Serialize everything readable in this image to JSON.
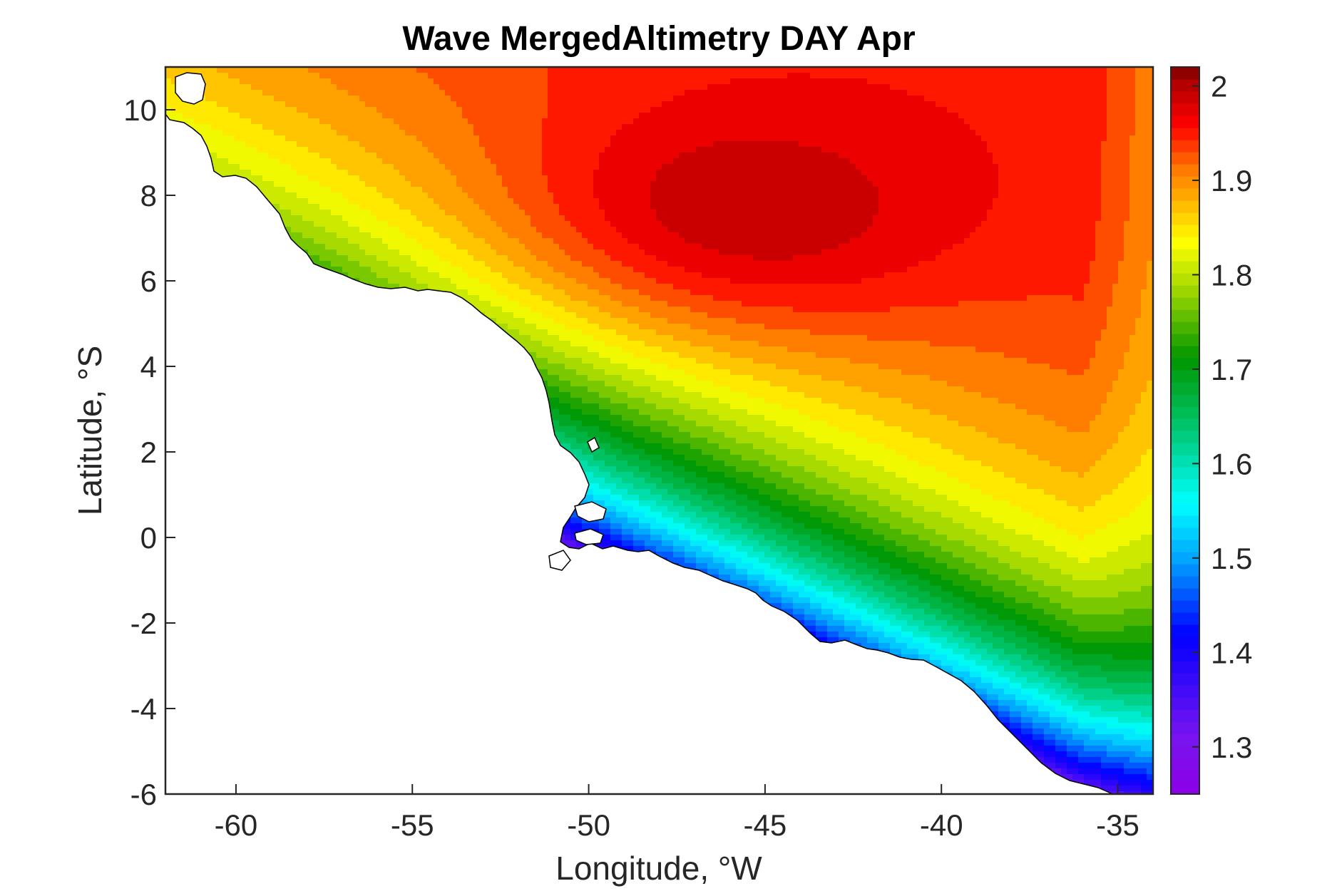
{
  "chart_data": {
    "type": "heatmap",
    "subtype": "filled-contour-map",
    "title": "Wave MergedAltimetry DAY Apr",
    "xlabel": "Longitude, °W",
    "ylabel": "Latitude, °S",
    "xlim": [
      -62,
      -34
    ],
    "ylim": [
      -6,
      11
    ],
    "x_ticks": [
      -60,
      -55,
      -50,
      -45,
      -40,
      -35
    ],
    "y_ticks": [
      -6,
      -4,
      -2,
      0,
      2,
      4,
      6,
      8,
      10
    ],
    "colorbar": {
      "range": [
        1.25,
        2.02
      ],
      "ticks": [
        "1.3",
        "1.4",
        "1.5",
        "1.6",
        "1.7",
        "1.8",
        "1.9",
        "2"
      ],
      "colormap": "jet-like (purple-blue-cyan-green-yellow-red-darkred)"
    },
    "field": {
      "maximum": {
        "lon": -46.5,
        "lat": 7.2,
        "value": 2.0
      },
      "minimum_near": {
        "lon": -49.0,
        "lat": -0.5,
        "value": 1.27
      },
      "gradient_band": "values decrease from ~1.95 offshore (north/east) to ~1.3-1.5 near the coast at the Amazon mouth",
      "land_masked": true
    },
    "grid": false,
    "colorbar_position": "right"
  }
}
